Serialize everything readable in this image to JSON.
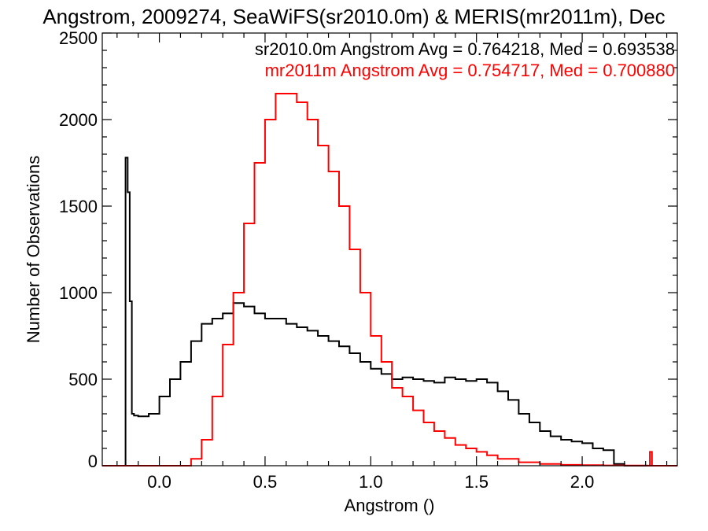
{
  "chart_data": {
    "type": "line",
    "title": "Angstrom, 2009274, SeaWiFS(sr2010.0m) & MERIS(mr2011m), Dec",
    "xlabel": "Angstrom ()",
    "ylabel": "Number of Observations",
    "xlim": [
      -0.27,
      2.45
    ],
    "ylim": [
      0,
      2500
    ],
    "x_ticks": [
      0.0,
      0.5,
      1.0,
      1.5,
      2.0
    ],
    "x_tick_labels": [
      "0.0",
      "0.5",
      "1.0",
      "1.5",
      "2.0"
    ],
    "y_ticks": [
      0,
      500,
      1000,
      1500,
      2000,
      2500
    ],
    "y_tick_labels": [
      "0",
      "500",
      "1000",
      "1500",
      "2000",
      "2500"
    ],
    "grid": false,
    "legend_placement": "top-right",
    "annotations": [
      "sr2010.0m Angstrom Avg = 0.764218, Med = 0.693538",
      "mr2011m Angstrom Avg = 0.754717, Med = 0.700880"
    ],
    "series": [
      {
        "color": "#000000",
        "x": [
          -0.2,
          -0.17,
          -0.16,
          -0.15,
          -0.14,
          -0.13,
          -0.12,
          -0.1,
          -0.05,
          0.0,
          0.05,
          0.1,
          0.15,
          0.2,
          0.25,
          0.3,
          0.35,
          0.4,
          0.45,
          0.5,
          0.55,
          0.6,
          0.65,
          0.7,
          0.75,
          0.8,
          0.85,
          0.9,
          0.95,
          1.0,
          1.05,
          1.1,
          1.15,
          1.2,
          1.25,
          1.3,
          1.35,
          1.4,
          1.45,
          1.5,
          1.55,
          1.6,
          1.65,
          1.7,
          1.75,
          1.8,
          1.85,
          1.9,
          1.95,
          2.0,
          2.05,
          2.1,
          2.15,
          2.2,
          2.3,
          2.45
        ],
        "y": [
          0,
          0,
          1780,
          1580,
          950,
          300,
          290,
          285,
          300,
          400,
          500,
          600,
          720,
          820,
          850,
          880,
          940,
          920,
          880,
          850,
          850,
          820,
          800,
          780,
          750,
          720,
          690,
          650,
          600,
          560,
          530,
          500,
          510,
          500,
          490,
          480,
          510,
          500,
          490,
          500,
          480,
          430,
          380,
          300,
          250,
          200,
          170,
          150,
          140,
          130,
          100,
          90,
          10,
          0,
          0,
          0
        ]
      },
      {
        "color": "#ff0000",
        "x": [
          -0.27,
          0.1,
          0.15,
          0.2,
          0.25,
          0.3,
          0.35,
          0.4,
          0.45,
          0.5,
          0.55,
          0.6,
          0.65,
          0.7,
          0.75,
          0.8,
          0.85,
          0.9,
          0.95,
          1.0,
          1.05,
          1.1,
          1.15,
          1.2,
          1.25,
          1.3,
          1.35,
          1.4,
          1.45,
          1.5,
          1.55,
          1.6,
          1.7,
          1.8,
          1.9,
          2.0,
          2.1,
          2.2,
          2.31,
          2.32,
          2.33,
          2.45
        ],
        "y": [
          0,
          0,
          40,
          150,
          400,
          700,
          1000,
          1400,
          1750,
          2000,
          2150,
          2150,
          2100,
          2000,
          1850,
          1700,
          1500,
          1250,
          1000,
          750,
          600,
          450,
          400,
          320,
          250,
          200,
          160,
          120,
          100,
          80,
          60,
          40,
          20,
          10,
          5,
          3,
          2,
          1,
          0,
          80,
          0,
          0
        ]
      }
    ]
  }
}
